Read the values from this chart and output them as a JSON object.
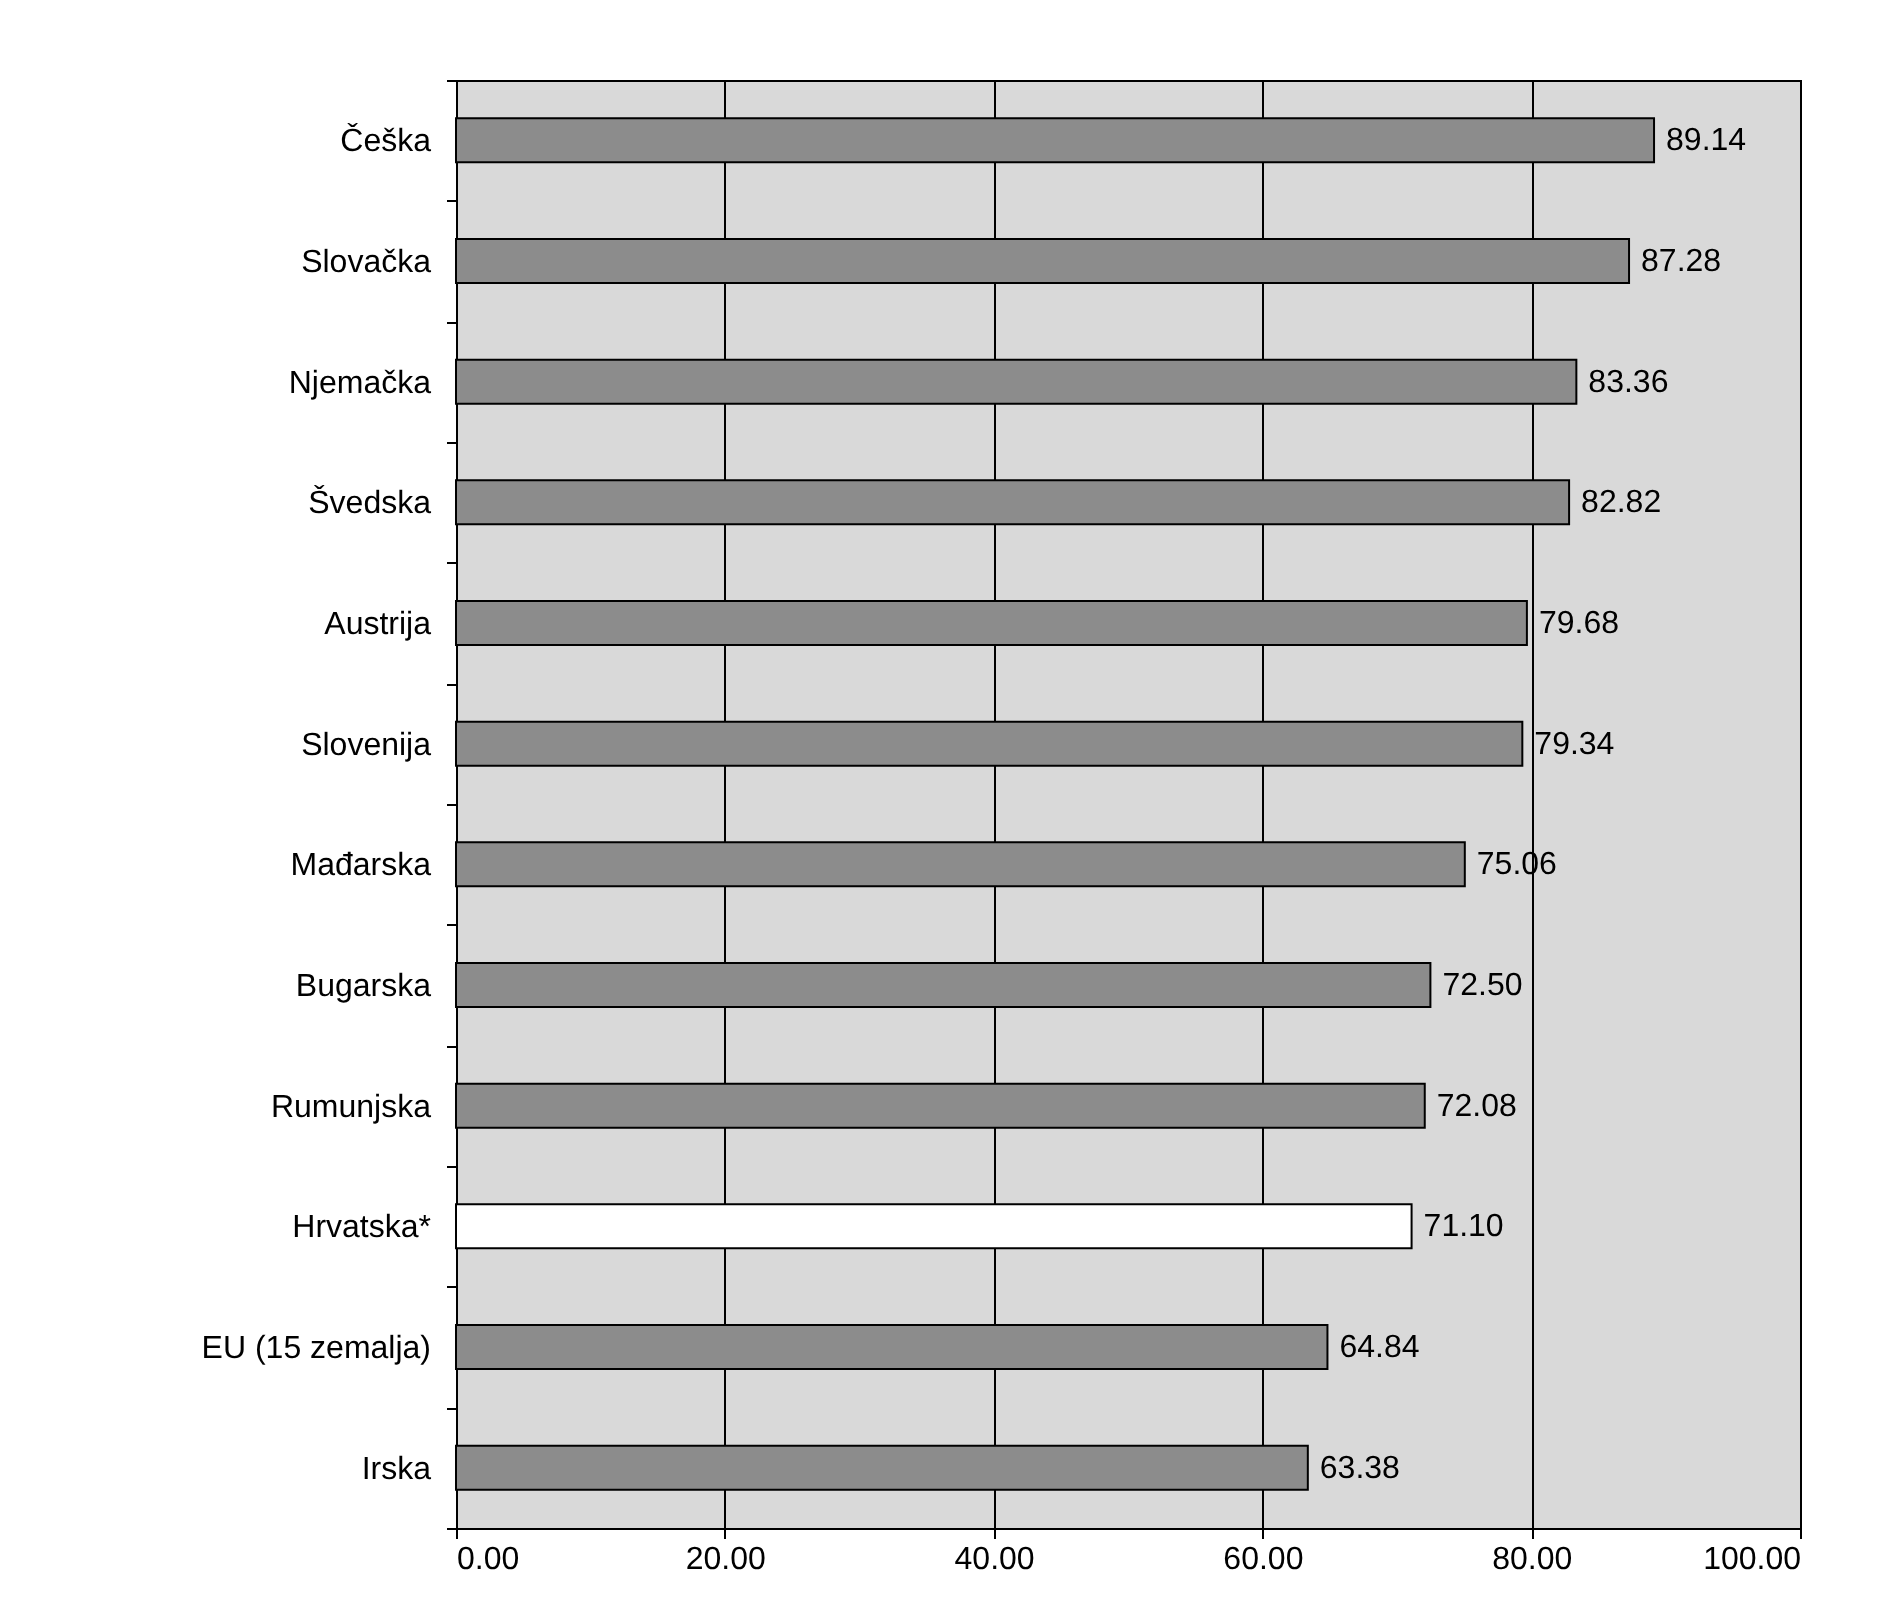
{
  "chart_data": {
    "type": "bar",
    "orientation": "horizontal",
    "categories": [
      "Češka",
      "Slovačka",
      "Njemačka",
      "Švedska",
      "Austrija",
      "Slovenija",
      "Mađarska",
      "Bugarska",
      "Rumunjska",
      "Hrvatska*",
      "EU (15 zemalja)",
      "Irska"
    ],
    "values": [
      89.14,
      87.28,
      83.36,
      82.82,
      79.68,
      79.34,
      75.06,
      72.5,
      72.08,
      71.1,
      64.84,
      63.38
    ],
    "colors": [
      "#8c8c8c",
      "#8c8c8c",
      "#8c8c8c",
      "#8c8c8c",
      "#8c8c8c",
      "#8c8c8c",
      "#8c8c8c",
      "#8c8c8c",
      "#8c8c8c",
      "#ffffff",
      "#8c8c8c",
      "#8c8c8c"
    ],
    "value_labels": [
      "89.14",
      "87.28",
      "83.36",
      "82.82",
      "79.68",
      "79.34",
      "75.06",
      "72.50",
      "72.08",
      "71.10",
      "64.84",
      "63.38"
    ],
    "xlim": [
      0,
      100
    ],
    "xticks": [
      {
        "value": 0,
        "label": "0.00"
      },
      {
        "value": 20,
        "label": "20.00"
      },
      {
        "value": 40,
        "label": "40.00"
      },
      {
        "value": 60,
        "label": "60.00"
      },
      {
        "value": 80,
        "label": "80.00"
      },
      {
        "value": 100,
        "label": "100.00"
      }
    ],
    "grid": "x"
  }
}
